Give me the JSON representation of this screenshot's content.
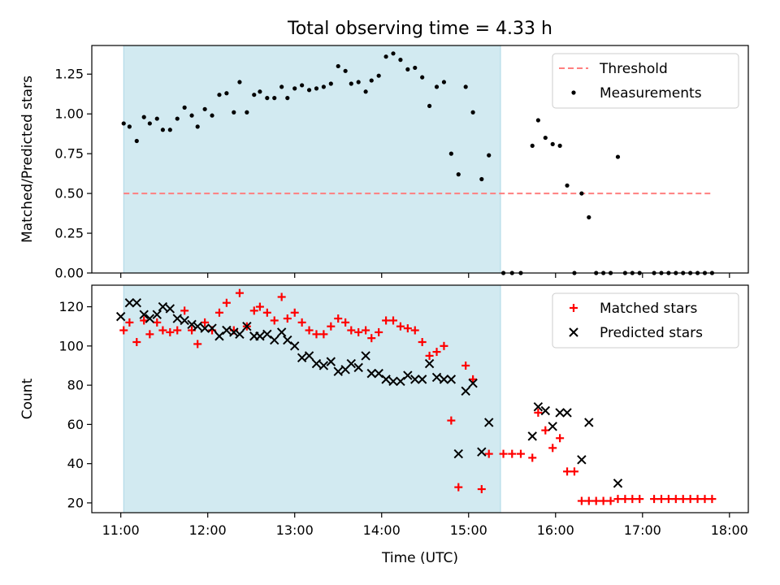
{
  "title": "Total observing time = 4.33 h",
  "xlabel": "Time (UTC)",
  "x_ticks": [
    "11:00",
    "12:00",
    "13:00",
    "14:00",
    "15:00",
    "16:00",
    "17:00",
    "18:00"
  ],
  "colors": {
    "shade": "#add8e6",
    "threshold": "#ff7f7f",
    "measurement": "#000000",
    "matched": "#ff0000",
    "predicted": "#000000"
  },
  "chart_data": [
    {
      "type": "scatter",
      "ylabel": "Matched/Predicted stars",
      "xlim": [
        "10:40",
        "18:13"
      ],
      "ylim": [
        0,
        1.43
      ],
      "y_ticks": [
        "0.00",
        "0.25",
        "0.50",
        "0.75",
        "1.00",
        "1.25"
      ],
      "observing_window": [
        "11:02",
        "15:22"
      ],
      "legend": {
        "placement": "top-right",
        "entries": [
          "Threshold",
          "Measurements"
        ]
      },
      "threshold": {
        "name": "Threshold",
        "value": 0.5,
        "x_range": [
          "11:02",
          "17:48"
        ]
      },
      "series": [
        {
          "name": "Measurements",
          "points": [
            [
              "11:02",
              0.94
            ],
            [
              "11:06",
              0.92
            ],
            [
              "11:11",
              0.83
            ],
            [
              "11:16",
              0.98
            ],
            [
              "11:20",
              0.94
            ],
            [
              "11:25",
              0.97
            ],
            [
              "11:29",
              0.9
            ],
            [
              "11:34",
              0.9
            ],
            [
              "11:39",
              0.97
            ],
            [
              "11:44",
              1.04
            ],
            [
              "11:49",
              0.99
            ],
            [
              "11:53",
              0.92
            ],
            [
              "11:58",
              1.03
            ],
            [
              "12:03",
              0.99
            ],
            [
              "12:08",
              1.12
            ],
            [
              "12:13",
              1.13
            ],
            [
              "12:18",
              1.01
            ],
            [
              "12:22",
              1.2
            ],
            [
              "12:27",
              1.01
            ],
            [
              "12:32",
              1.12
            ],
            [
              "12:36",
              1.14
            ],
            [
              "12:41",
              1.1
            ],
            [
              "12:46",
              1.1
            ],
            [
              "12:51",
              1.17
            ],
            [
              "12:55",
              1.1
            ],
            [
              "13:00",
              1.16
            ],
            [
              "13:05",
              1.18
            ],
            [
              "13:10",
              1.15
            ],
            [
              "13:15",
              1.16
            ],
            [
              "13:20",
              1.17
            ],
            [
              "13:25",
              1.19
            ],
            [
              "13:30",
              1.3
            ],
            [
              "13:35",
              1.27
            ],
            [
              "13:39",
              1.19
            ],
            [
              "13:44",
              1.2
            ],
            [
              "13:49",
              1.14
            ],
            [
              "13:53",
              1.21
            ],
            [
              "13:58",
              1.24
            ],
            [
              "14:03",
              1.36
            ],
            [
              "14:08",
              1.38
            ],
            [
              "14:13",
              1.34
            ],
            [
              "14:18",
              1.28
            ],
            [
              "14:23",
              1.29
            ],
            [
              "14:28",
              1.23
            ],
            [
              "14:33",
              1.05
            ],
            [
              "14:38",
              1.17
            ],
            [
              "14:43",
              1.2
            ],
            [
              "14:48",
              0.75
            ],
            [
              "14:53",
              0.62
            ],
            [
              "14:58",
              1.17
            ],
            [
              "15:03",
              1.01
            ],
            [
              "15:09",
              0.59
            ],
            [
              "15:14",
              0.74
            ],
            [
              "15:24",
              0.0
            ],
            [
              "15:30",
              0.0
            ],
            [
              "15:36",
              0.0
            ],
            [
              "15:44",
              0.8
            ],
            [
              "15:48",
              0.96
            ],
            [
              "15:53",
              0.85
            ],
            [
              "15:58",
              0.81
            ],
            [
              "16:03",
              0.8
            ],
            [
              "16:08",
              0.55
            ],
            [
              "16:13",
              0.0
            ],
            [
              "16:18",
              0.5
            ],
            [
              "16:23",
              0.35
            ],
            [
              "16:28",
              0.0
            ],
            [
              "16:33",
              0.0
            ],
            [
              "16:38",
              0.0
            ],
            [
              "16:43",
              0.73
            ],
            [
              "16:48",
              0.0
            ],
            [
              "16:53",
              0.0
            ],
            [
              "16:58",
              0.0
            ],
            [
              "17:08",
              0.0
            ],
            [
              "17:13",
              0.0
            ],
            [
              "17:18",
              0.0
            ],
            [
              "17:23",
              0.0
            ],
            [
              "17:28",
              0.0
            ],
            [
              "17:33",
              0.0
            ],
            [
              "17:38",
              0.0
            ],
            [
              "17:43",
              0.0
            ],
            [
              "17:48",
              0.0
            ]
          ]
        }
      ]
    },
    {
      "type": "scatter",
      "ylabel": "Count",
      "xlabel": "Time (UTC)",
      "xlim": [
        "10:40",
        "18:13"
      ],
      "ylim": [
        15,
        131
      ],
      "y_ticks": [
        "20",
        "40",
        "60",
        "80",
        "100",
        "120"
      ],
      "observing_window": [
        "11:02",
        "15:22"
      ],
      "legend": {
        "placement": "top-right",
        "entries": [
          "Matched stars",
          "Predicted stars"
        ]
      },
      "series": [
        {
          "name": "Matched stars",
          "marker": "plus",
          "points": [
            [
              "11:02",
              108
            ],
            [
              "11:06",
              112
            ],
            [
              "11:11",
              102
            ],
            [
              "11:16",
              113
            ],
            [
              "11:20",
              106
            ],
            [
              "11:25",
              112
            ],
            [
              "11:29",
              108
            ],
            [
              "11:34",
              107
            ],
            [
              "11:39",
              108
            ],
            [
              "11:44",
              118
            ],
            [
              "11:49",
              108
            ],
            [
              "11:53",
              101
            ],
            [
              "11:58",
              112
            ],
            [
              "12:03",
              108
            ],
            [
              "12:08",
              117
            ],
            [
              "12:13",
              122
            ],
            [
              "12:18",
              108
            ],
            [
              "12:22",
              127
            ],
            [
              "12:27",
              110
            ],
            [
              "12:32",
              118
            ],
            [
              "12:36",
              120
            ],
            [
              "12:41",
              117
            ],
            [
              "12:46",
              113
            ],
            [
              "12:51",
              125
            ],
            [
              "12:55",
              114
            ],
            [
              "13:00",
              117
            ],
            [
              "13:05",
              112
            ],
            [
              "13:10",
              108
            ],
            [
              "13:15",
              106
            ],
            [
              "13:20",
              106
            ],
            [
              "13:25",
              110
            ],
            [
              "13:30",
              114
            ],
            [
              "13:35",
              112
            ],
            [
              "13:39",
              108
            ],
            [
              "13:44",
              107
            ],
            [
              "13:49",
              108
            ],
            [
              "13:53",
              104
            ],
            [
              "13:58",
              107
            ],
            [
              "14:03",
              113
            ],
            [
              "14:08",
              113
            ],
            [
              "14:13",
              110
            ],
            [
              "14:18",
              109
            ],
            [
              "14:23",
              108
            ],
            [
              "14:28",
              102
            ],
            [
              "14:33",
              95
            ],
            [
              "14:38",
              97
            ],
            [
              "14:43",
              100
            ],
            [
              "14:48",
              62
            ],
            [
              "14:53",
              28
            ],
            [
              "14:58",
              90
            ],
            [
              "15:03",
              83
            ],
            [
              "15:09",
              27
            ],
            [
              "15:14",
              45
            ],
            [
              "15:24",
              45
            ],
            [
              "15:30",
              45
            ],
            [
              "15:36",
              45
            ],
            [
              "15:44",
              43
            ],
            [
              "15:48",
              66
            ],
            [
              "15:53",
              57
            ],
            [
              "15:58",
              48
            ],
            [
              "16:03",
              53
            ],
            [
              "16:08",
              36
            ],
            [
              "16:13",
              36
            ],
            [
              "16:18",
              21
            ],
            [
              "16:23",
              21
            ],
            [
              "16:28",
              21
            ],
            [
              "16:33",
              21
            ],
            [
              "16:38",
              21
            ],
            [
              "16:43",
              22
            ],
            [
              "16:48",
              22
            ],
            [
              "16:53",
              22
            ],
            [
              "16:58",
              22
            ],
            [
              "17:08",
              22
            ],
            [
              "17:13",
              22
            ],
            [
              "17:18",
              22
            ],
            [
              "17:23",
              22
            ],
            [
              "17:28",
              22
            ],
            [
              "17:33",
              22
            ],
            [
              "17:38",
              22
            ],
            [
              "17:43",
              22
            ],
            [
              "17:48",
              22
            ]
          ]
        },
        {
          "name": "Predicted stars",
          "marker": "x",
          "points": [
            [
              "11:00",
              115
            ],
            [
              "11:06",
              122
            ],
            [
              "11:11",
              122
            ],
            [
              "11:16",
              116
            ],
            [
              "11:20",
              114
            ],
            [
              "11:25",
              116
            ],
            [
              "11:29",
              120
            ],
            [
              "11:34",
              119
            ],
            [
              "11:39",
              114
            ],
            [
              "11:44",
              113
            ],
            [
              "11:49",
              111
            ],
            [
              "11:53",
              110
            ],
            [
              "11:58",
              109
            ],
            [
              "12:03",
              109
            ],
            [
              "12:08",
              105
            ],
            [
              "12:13",
              108
            ],
            [
              "12:18",
              107
            ],
            [
              "12:22",
              106
            ],
            [
              "12:27",
              110
            ],
            [
              "12:32",
              105
            ],
            [
              "12:36",
              105
            ],
            [
              "12:41",
              106
            ],
            [
              "12:46",
              103
            ],
            [
              "12:51",
              107
            ],
            [
              "12:55",
              103
            ],
            [
              "13:00",
              100
            ],
            [
              "13:05",
              94
            ],
            [
              "13:10",
              95
            ],
            [
              "13:15",
              91
            ],
            [
              "13:20",
              90
            ],
            [
              "13:25",
              92
            ],
            [
              "13:30",
              87
            ],
            [
              "13:35",
              88
            ],
            [
              "13:39",
              91
            ],
            [
              "13:44",
              89
            ],
            [
              "13:49",
              95
            ],
            [
              "13:53",
              86
            ],
            [
              "13:58",
              86
            ],
            [
              "14:03",
              83
            ],
            [
              "14:08",
              82
            ],
            [
              "14:13",
              82
            ],
            [
              "14:18",
              85
            ],
            [
              "14:23",
              83
            ],
            [
              "14:28",
              83
            ],
            [
              "14:33",
              91
            ],
            [
              "14:38",
              84
            ],
            [
              "14:43",
              83
            ],
            [
              "14:48",
              83
            ],
            [
              "14:53",
              45
            ],
            [
              "14:58",
              77
            ],
            [
              "15:03",
              81
            ],
            [
              "15:09",
              46
            ],
            [
              "15:14",
              61
            ],
            [
              "15:44",
              54
            ],
            [
              "15:48",
              69
            ],
            [
              "15:53",
              67
            ],
            [
              "15:58",
              59
            ],
            [
              "16:03",
              66
            ],
            [
              "16:08",
              66
            ],
            [
              "16:18",
              42
            ],
            [
              "16:23",
              61
            ],
            [
              "16:43",
              30
            ]
          ]
        }
      ]
    }
  ]
}
